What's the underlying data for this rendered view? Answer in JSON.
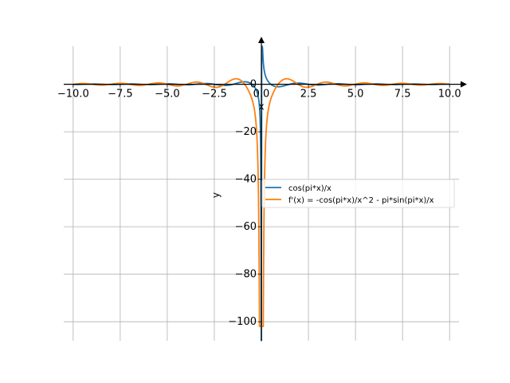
{
  "chart_data": {
    "type": "line",
    "title": "",
    "xlabel": "x",
    "ylabel": "y",
    "xlim": [
      -10.5,
      10.5
    ],
    "ylim": [
      -108,
      16
    ],
    "grid": true,
    "legend_position": "center-right",
    "x_ticks": [
      -10.0,
      -7.5,
      -5.0,
      -2.5,
      0.0,
      2.5,
      5.0,
      7.5,
      10.0
    ],
    "x_tick_labels": [
      "−10.0",
      "−7.5",
      "−5.0",
      "−2.5",
      "0.0",
      "2.5",
      "5.0",
      "7.5",
      "10.0"
    ],
    "y_ticks": [
      -100,
      -80,
      -60,
      -40,
      -20,
      0
    ],
    "y_tick_labels": [
      "−100",
      "−80",
      "−60",
      "−40",
      "−20",
      "0"
    ],
    "series": [
      {
        "name": "cos(pi*x)/x",
        "color": "#1f77b4",
        "expr": "cos_pi_x_over_x",
        "x_range": [
          -10,
          10
        ]
      },
      {
        "name": "f'(x) = -cos(pi*x)/x^2 - pi*sin(pi*x)/x",
        "color": "#ff7f0e",
        "expr": "derivative",
        "x_range": [
          -10,
          10
        ],
        "y_min": -102
      }
    ]
  }
}
